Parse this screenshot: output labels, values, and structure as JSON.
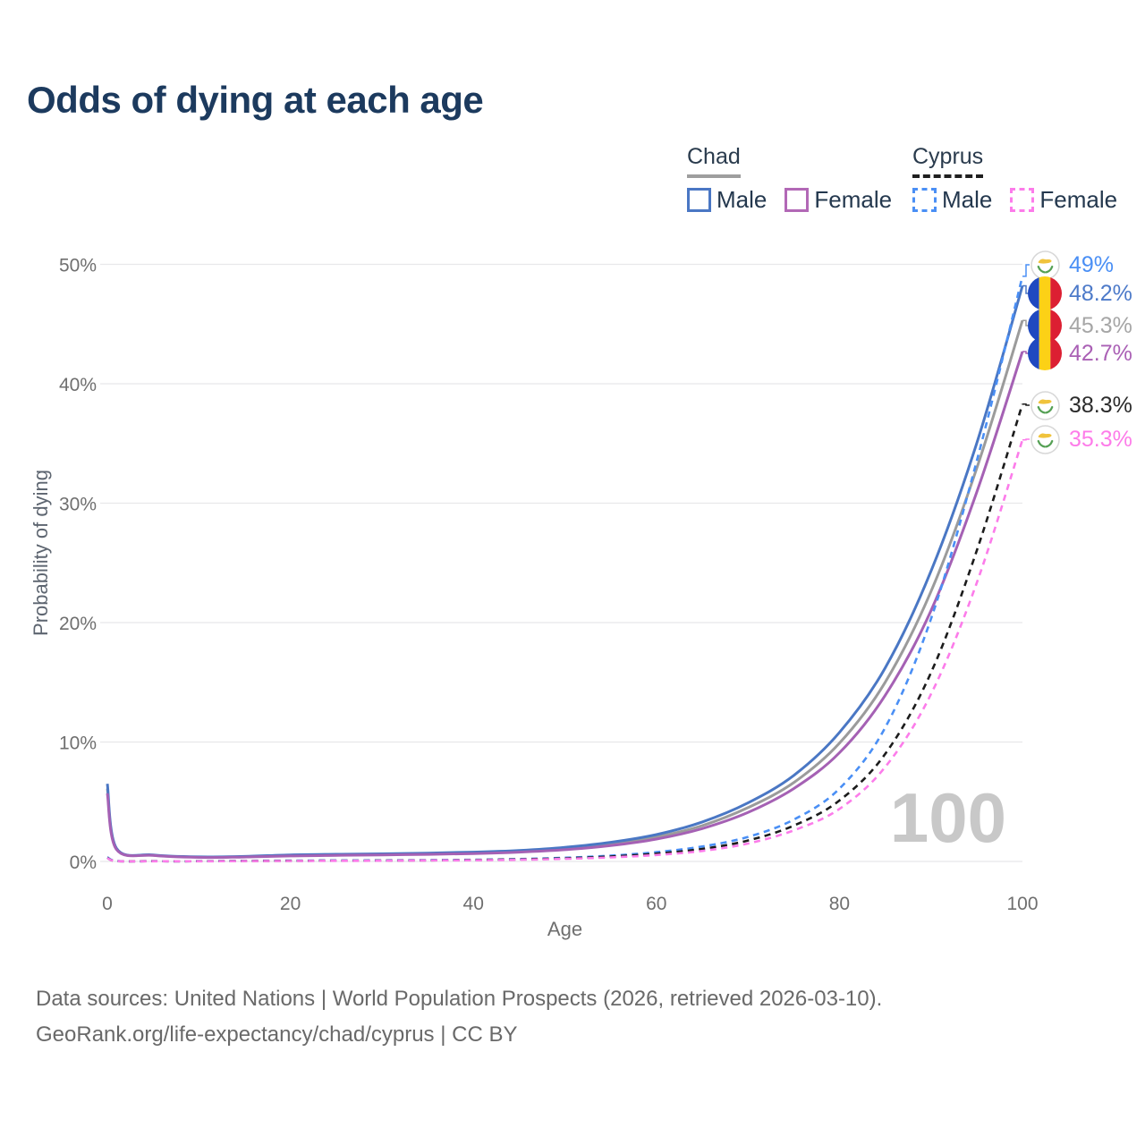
{
  "title": "Odds of dying at each age",
  "legend": {
    "groups": [
      {
        "label": "Chad",
        "line_style": "solid",
        "underline_color": "#9e9e9e",
        "items": [
          {
            "label": "Male",
            "color": "#4a77c4"
          },
          {
            "label": "Female",
            "color": "#b268b6"
          }
        ]
      },
      {
        "label": "Cyprus",
        "line_style": "dashed",
        "underline_color": "#1f1f1f",
        "items": [
          {
            "label": "Male",
            "color": "#4a8ff5"
          },
          {
            "label": "Female",
            "color": "#fc7cea"
          }
        ]
      }
    ]
  },
  "chart_data": {
    "type": "line",
    "title": "Odds of dying at each age",
    "xlabel": "Age",
    "ylabel": "Probability of dying",
    "xlim": [
      0,
      100
    ],
    "ylim": [
      0,
      50
    ],
    "grid": "horizontal",
    "legend_position": "top-right",
    "x_tick_values": [
      0,
      20,
      40,
      60,
      80,
      100
    ],
    "x_tick_labels": [
      "0",
      "20",
      "40",
      "60",
      "80",
      "100"
    ],
    "y_tick_values": [
      0,
      10,
      20,
      30,
      40,
      50
    ],
    "y_tick_labels": [
      "0%",
      "10%",
      "20%",
      "30%",
      "40%",
      "50%"
    ],
    "watermark": "100",
    "x": [
      0,
      1,
      5,
      10,
      15,
      20,
      25,
      30,
      35,
      40,
      45,
      50,
      55,
      60,
      65,
      70,
      75,
      80,
      85,
      90,
      95,
      100
    ],
    "series": [
      {
        "id": "chad-average",
        "country": "Chad",
        "sex": "both",
        "style": "solid",
        "color": "#9b9b9b",
        "flag": "chad",
        "end_label": "45.3%",
        "end_label_color": "#a6a6a6",
        "values": [
          6.1,
          1.05,
          0.52,
          0.36,
          0.39,
          0.5,
          0.55,
          0.59,
          0.64,
          0.72,
          0.85,
          1.08,
          1.46,
          2.05,
          3.0,
          4.5,
          6.6,
          9.9,
          15.0,
          22.6,
          32.9,
          45.3
        ]
      },
      {
        "id": "chad-male",
        "country": "Chad",
        "sex": "male",
        "style": "solid",
        "color": "#4a77c4",
        "flag": "chad",
        "end_label": "48.2%",
        "end_label_color": "#4d7ac9",
        "values": [
          6.5,
          1.1,
          0.55,
          0.38,
          0.42,
          0.55,
          0.6,
          0.64,
          0.7,
          0.78,
          0.92,
          1.18,
          1.6,
          2.25,
          3.3,
          4.9,
          7.2,
          10.8,
          16.2,
          24.3,
          35.0,
          48.2
        ]
      },
      {
        "id": "chad-female",
        "country": "Chad",
        "sex": "female",
        "style": "solid",
        "color": "#a561b4",
        "flag": "chad",
        "end_label": "42.7%",
        "end_label_color": "#aa60b5",
        "values": [
          5.7,
          1.0,
          0.5,
          0.34,
          0.37,
          0.46,
          0.51,
          0.55,
          0.59,
          0.66,
          0.78,
          0.98,
          1.33,
          1.87,
          2.75,
          4.1,
          6.1,
          9.1,
          13.9,
          21.0,
          30.9,
          42.7
        ]
      },
      {
        "id": "cyprus-male",
        "country": "Cyprus",
        "sex": "male",
        "style": "dashed",
        "color": "#4a8ff5",
        "flag": "cyprus",
        "end_label": "49%",
        "end_label_color": "#4a8ff5",
        "values": [
          0.35,
          0.04,
          0.02,
          0.02,
          0.05,
          0.07,
          0.08,
          0.09,
          0.11,
          0.14,
          0.2,
          0.31,
          0.48,
          0.78,
          1.25,
          2.05,
          3.5,
          6.1,
          11.2,
          20.3,
          33.5,
          49.0
        ]
      },
      {
        "id": "cyprus-average",
        "country": "Cyprus",
        "sex": "both",
        "style": "dashed",
        "color": "#1c1c1c",
        "flag": "cyprus",
        "end_label": "38.3%",
        "end_label_color": "#2b2b2b",
        "values": [
          0.3,
          0.03,
          0.02,
          0.02,
          0.04,
          0.05,
          0.06,
          0.07,
          0.09,
          0.12,
          0.17,
          0.26,
          0.41,
          0.65,
          1.05,
          1.75,
          3.0,
          5.1,
          9.0,
          15.8,
          26.0,
          38.3
        ]
      },
      {
        "id": "cyprus-female",
        "country": "Cyprus",
        "sex": "female",
        "style": "dashed",
        "color": "#fc7cea",
        "flag": "cyprus",
        "end_label": "35.3%",
        "end_label_color": "#fd7ce9",
        "values": [
          0.28,
          0.03,
          0.015,
          0.015,
          0.03,
          0.04,
          0.05,
          0.06,
          0.08,
          0.1,
          0.14,
          0.22,
          0.34,
          0.54,
          0.88,
          1.5,
          2.6,
          4.4,
          7.9,
          14.0,
          23.3,
          35.3
        ]
      }
    ]
  },
  "flag_colors": {
    "chad": {
      "blue": "#1f49c0",
      "yellow": "#fcd116",
      "red": "#dc1f32"
    },
    "cyprus": {
      "white": "#ffffff",
      "border": "#d8d8d8",
      "island": "#f0c33c",
      "branch": "#55a054"
    }
  },
  "style_colors": {
    "title": "#1c3a5e",
    "axis_text": "#6f6f6f",
    "gridline": "#e8e8ea",
    "watermark": "#c8c8c8"
  },
  "footer": {
    "line1": "Data sources: United Nations | World Population Prospects (2026, retrieved 2026-03-10).",
    "line2": "GeoRank.org/life-expectancy/chad/cyprus | CC BY"
  }
}
